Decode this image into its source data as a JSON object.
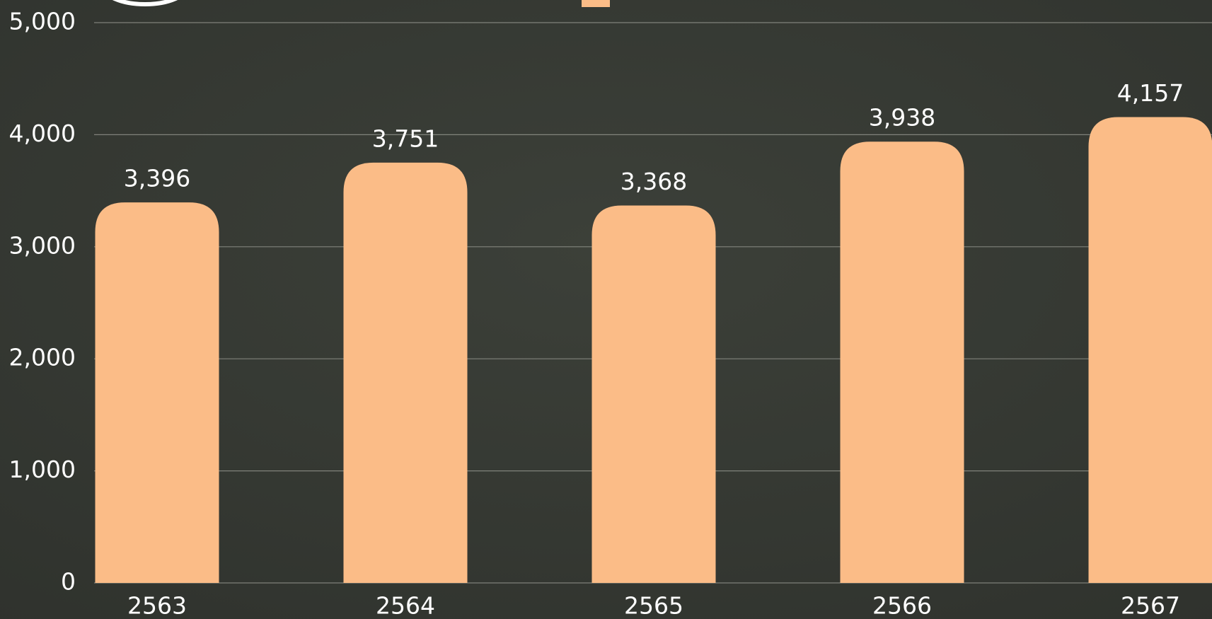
{
  "chart_data": {
    "type": "bar",
    "categories": [
      "2563",
      "2564",
      "2565",
      "2566",
      "2567"
    ],
    "values": [
      3396,
      3751,
      3368,
      3938,
      4157
    ],
    "value_labels": [
      "3,396",
      "3,751",
      "3,368",
      "3,938",
      "4,157"
    ],
    "color": "#fbbc87",
    "ylim": [
      0,
      5000
    ],
    "yticks": [
      0,
      {
        "value": 1000,
        "label": "1,000"
      },
      {
        "value": 2000,
        "label": "2,000"
      },
      {
        "value": 3000,
        "label": "3,000"
      },
      {
        "value": 4000,
        "label": "4,000"
      },
      {
        "value": 5000,
        "label": "5,000"
      }
    ],
    "grid": true
  }
}
